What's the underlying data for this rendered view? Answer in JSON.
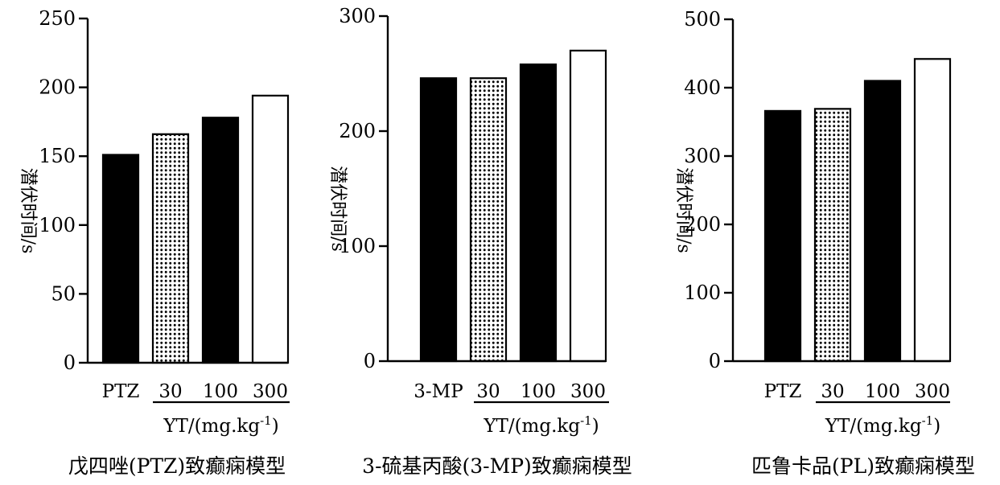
{
  "chart_data": [
    {
      "type": "bar",
      "categories": [
        "PTZ",
        "30",
        "100",
        "300"
      ],
      "values": [
        151,
        166,
        178,
        194
      ],
      "bar_styles": [
        "solid-black",
        "dotted",
        "solid-black",
        "white"
      ],
      "ylim": [
        0,
        250
      ],
      "yticks": [
        0,
        50,
        100,
        150,
        200,
        250
      ],
      "ylabel": "潜伏时间/s",
      "group_label": "YT/(mg.kg-1)",
      "caption": "戊四唑(PTZ)致癫痫模型"
    },
    {
      "type": "bar",
      "categories": [
        "3-MP",
        "30",
        "100",
        "300"
      ],
      "values": [
        246,
        246,
        258,
        270
      ],
      "bar_styles": [
        "solid-black",
        "dotted",
        "solid-black",
        "white"
      ],
      "ylim": [
        0,
        300
      ],
      "yticks": [
        0,
        100,
        200,
        300
      ],
      "ylabel": "潜伏时间/s",
      "group_label": "YT/(mg.kg-1)",
      "caption": "3-硫基丙酸(3-MP)致癫痫模型"
    },
    {
      "type": "bar",
      "categories": [
        "PTZ",
        "30",
        "100",
        "300"
      ],
      "values": [
        366,
        369,
        410,
        442
      ],
      "bar_styles": [
        "solid-black",
        "dotted",
        "solid-black",
        "white"
      ],
      "ylim": [
        0,
        500
      ],
      "yticks": [
        0,
        100,
        200,
        300,
        400,
        500
      ],
      "ylabel": "潜伏时间/s",
      "group_label": "YT/(mg.kg-1)",
      "caption": "匹鲁卡品(PL)致癫痫模型"
    }
  ]
}
